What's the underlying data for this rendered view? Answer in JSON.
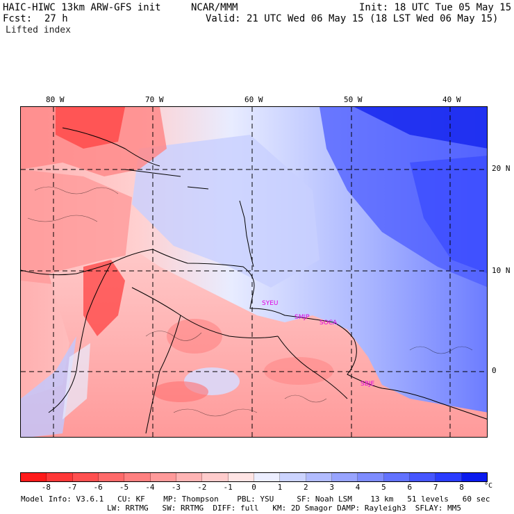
{
  "header": {
    "model": "HAIC-HIWC 13km ARW-GFS init",
    "org": "NCAR/MMM",
    "init": "Init: 18 UTC Tue 05 May 15",
    "fcst_label": "Fcst:",
    "fcst_value": "27 h",
    "valid": "Valid: 21 UTC Wed 06 May 15 (18 LST Wed 06 May 15)",
    "field": "Lifted index"
  },
  "map": {
    "lon_ticks": [
      "80 W",
      "70 W",
      "60 W",
      "50 W",
      "40 W"
    ],
    "lat_ticks": [
      "20 N",
      "10 N",
      "0"
    ],
    "stations": [
      "SYEU",
      "SMJP",
      "SOCA",
      "SBJE"
    ]
  },
  "colorbar": {
    "labels": [
      "-8",
      "-7",
      "-6",
      "-5",
      "-4",
      "-3",
      "-2",
      "-1",
      "0",
      "1",
      "2",
      "3",
      "4",
      "5",
      "6",
      "7",
      "8"
    ],
    "unit": "°C",
    "colors": [
      "#ff1a1a",
      "#ff3838",
      "#ff5050",
      "#ff6a6a",
      "#ff8080",
      "#ff9a9a",
      "#ffb4b4",
      "#ffcccc",
      "#ffe4e4",
      "#eceeff",
      "#ccd4ff",
      "#b2bcff",
      "#98a4ff",
      "#7e8cff",
      "#6272ff",
      "#4656ff",
      "#2a3cff",
      "#0a1aee"
    ]
  },
  "model_info": {
    "line1": "Model Info: V3.6.1   CU: KF    MP: Thompson    PBL: YSU     SF: Noah LSM    13 km   51 levels   60 sec",
    "line2": "LW: RRTMG   SW: RRTMG  DIFF: full   KM: 2D Smagor DAMP: Rayleigh3  SFLAY: MM5"
  }
}
